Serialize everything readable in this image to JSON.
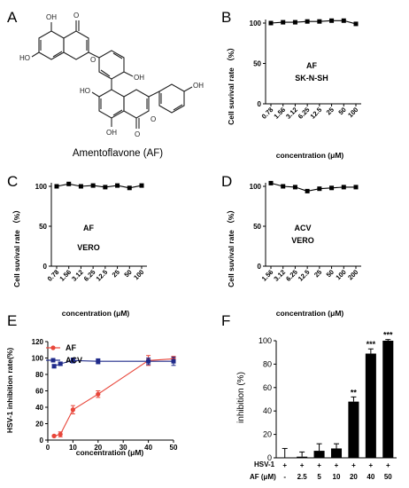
{
  "panels": {
    "A": {
      "letter": "A",
      "compound_label": "Amentoflavone (AF)",
      "substituents": [
        "OH",
        "OH",
        "HO",
        "OH",
        "OH",
        "HO",
        "O",
        "O",
        "OH",
        "O",
        "O"
      ]
    }
  },
  "chart_data": [
    {
      "id": "B",
      "letter": "B",
      "type": "line",
      "categories": [
        "0.78",
        "1.56",
        "3.12",
        "6.25",
        "12.5",
        "25",
        "50",
        "100"
      ],
      "series": [
        {
          "values": [
            100,
            101,
            101,
            102,
            102,
            103,
            103,
            99
          ]
        }
      ],
      "errors": [
        1,
        1,
        1,
        1,
        1,
        1,
        1,
        2
      ],
      "annotations": [
        "AF",
        "SK-N-SH"
      ],
      "xlabel": "concentration (μM)",
      "ylabel": "Cell suvival rate （%）",
      "ylim": [
        0,
        100
      ],
      "yticks": [
        0,
        50,
        100
      ],
      "color": "#000000",
      "grid": false
    },
    {
      "id": "C",
      "letter": "C",
      "type": "line",
      "categories": [
        "0.78",
        "1.56",
        "3.12",
        "6.25",
        "12.5",
        "25",
        "50",
        "100"
      ],
      "series": [
        {
          "values": [
            100,
            103,
            100,
            101,
            99,
            101,
            98,
            101
          ]
        }
      ],
      "errors": [
        1,
        1,
        1,
        1,
        1,
        1,
        1,
        1
      ],
      "annotations": [
        "AF",
        "VERO"
      ],
      "xlabel": "concentration (μM)",
      "ylabel": "Cell suvival rate （%）",
      "ylim": [
        0,
        100
      ],
      "yticks": [
        0,
        50,
        100
      ],
      "color": "#000000",
      "grid": false
    },
    {
      "id": "D",
      "letter": "D",
      "type": "line",
      "categories": [
        "1.56",
        "3.12",
        "6.25",
        "12.5",
        "25",
        "50",
        "100",
        "200"
      ],
      "series": [
        {
          "values": [
            104,
            100,
            99,
            94,
            97,
            98,
            99,
            99
          ]
        }
      ],
      "errors": [
        1,
        1,
        1,
        2,
        1,
        1,
        1,
        1
      ],
      "annotations": [
        "ACV",
        "VERO"
      ],
      "xlabel": "concentration (μM)",
      "ylabel": "Cell suvival rate （%）",
      "ylim": [
        0,
        100
      ],
      "yticks": [
        0,
        50,
        100
      ],
      "color": "#000000",
      "grid": false
    },
    {
      "id": "E",
      "letter": "E",
      "type": "line",
      "xlabel": "concentration (μM)",
      "ylabel": "HSV-1 inhibition rate(%)",
      "xlim": [
        0,
        50
      ],
      "xticks": [
        0,
        10,
        20,
        30,
        40,
        50
      ],
      "ylim": [
        0,
        120
      ],
      "yticks": [
        0,
        20,
        40,
        60,
        80,
        100,
        120
      ],
      "legend": "top-left",
      "grid": false,
      "series": [
        {
          "name": "AF",
          "color": "#e8463a",
          "marker": "circle",
          "x": [
            2.5,
            5,
            10,
            20,
            40,
            50
          ],
          "y": [
            5,
            7,
            37,
            56,
            97,
            99
          ],
          "err": [
            1,
            3,
            5,
            4,
            6,
            3
          ]
        },
        {
          "name": "ACV",
          "color": "#1f2a8a",
          "marker": "square",
          "x": [
            2.5,
            5,
            10,
            20,
            40,
            50
          ],
          "y": [
            90,
            93,
            97,
            96,
            96,
            96
          ],
          "err": [
            2,
            2,
            3,
            3,
            4,
            5
          ]
        }
      ]
    },
    {
      "id": "F",
      "letter": "F",
      "type": "bar",
      "categories": [
        "-",
        "2.5",
        "5",
        "10",
        "20",
        "40",
        "50"
      ],
      "values": [
        0,
        1,
        6,
        8,
        48,
        89,
        100
      ],
      "errors": [
        8,
        4,
        6,
        4,
        4,
        4,
        1
      ],
      "significance": [
        "",
        "",
        "",
        "",
        "**",
        "***",
        "***"
      ],
      "ylabel": "inhibition (%)",
      "ylim": [
        0,
        100
      ],
      "yticks": [
        0,
        20,
        40,
        60,
        80,
        100
      ],
      "row_labels": [
        "HSV-1",
        "AF (μM)"
      ],
      "hsv_row": [
        "+",
        "+",
        "+",
        "+",
        "+",
        "+",
        "+"
      ],
      "bar_color": "#000000",
      "grid": false
    }
  ]
}
